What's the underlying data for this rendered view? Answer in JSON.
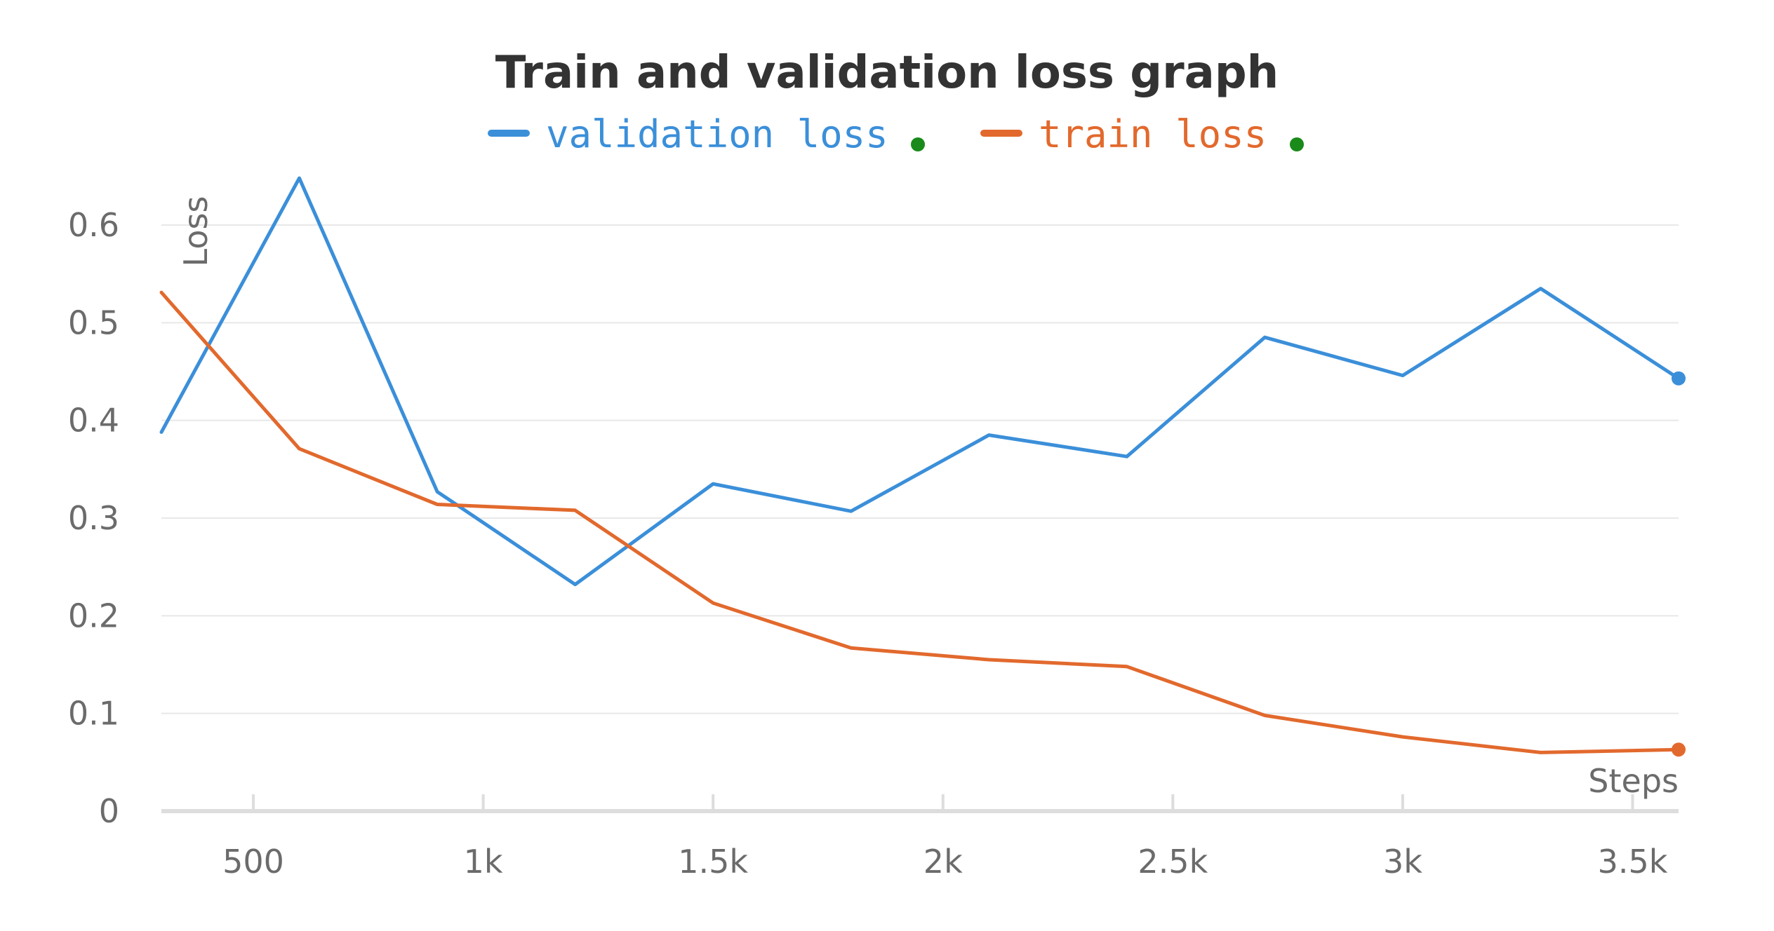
{
  "chart_data": {
    "type": "line",
    "title": "Train and validation loss graph",
    "xlabel": "Steps",
    "ylabel": "Loss",
    "xlim": [
      300,
      3600
    ],
    "ylim": [
      0,
      0.6
    ],
    "grid": true,
    "legend": "top-center",
    "yticks": [
      0,
      0.1,
      0.2,
      0.3,
      0.4,
      0.5,
      0.6
    ],
    "ytick_labels": [
      "0",
      "0.1",
      "0.2",
      "0.3",
      "0.4",
      "0.5",
      "0.6"
    ],
    "xticks": [
      500,
      1000,
      1500,
      2000,
      2500,
      3000,
      3500
    ],
    "xtick_labels": [
      "500",
      "1k",
      "1.5k",
      "2k",
      "2.5k",
      "3k",
      "3.5k"
    ],
    "series": [
      {
        "name": "validation loss",
        "color": "#3b8fd9",
        "x": [
          300,
          600,
          900,
          1200,
          1500,
          1800,
          2100,
          2400,
          2700,
          3000,
          3300,
          3600
        ],
        "y": [
          0.388,
          0.648,
          0.327,
          0.232,
          0.335,
          0.307,
          0.385,
          0.363,
          0.485,
          0.446,
          0.535,
          0.443
        ]
      },
      {
        "name": "train loss",
        "color": "#e2692d",
        "x": [
          300,
          600,
          900,
          1200,
          1500,
          1800,
          2100,
          2400,
          2700,
          3000,
          3300,
          3600
        ],
        "y": [
          0.531,
          0.371,
          0.314,
          0.308,
          0.213,
          0.167,
          0.155,
          0.148,
          0.098,
          0.076,
          0.06,
          0.063
        ]
      }
    ],
    "legend_status_color": "#1a8a1a"
  }
}
